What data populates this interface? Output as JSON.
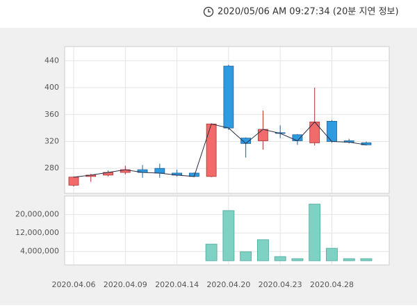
{
  "header": {
    "text": "2020/05/06 AM 09:27:34 (20분 지연 정보)"
  },
  "chart_data": {
    "type": "candlestick",
    "categories": [
      "2020.04.06",
      null,
      null,
      "2020.04.09",
      null,
      null,
      "2020.04.14",
      null,
      null,
      "2020.04.20",
      null,
      null,
      "2020.04.23",
      null,
      null,
      "2020.04.28",
      null,
      null
    ],
    "open": [
      255,
      268,
      270,
      274,
      278,
      280,
      273,
      273,
      268,
      432,
      325,
      321,
      333,
      330,
      318,
      350,
      321,
      318
    ],
    "high": [
      268,
      272,
      277,
      284,
      285,
      287,
      278,
      274,
      347,
      434,
      326,
      366,
      344,
      331,
      400,
      352,
      324,
      320
    ],
    "low": [
      253,
      260,
      268,
      271,
      266,
      266,
      268,
      267,
      267,
      337,
      296,
      308,
      325,
      315,
      314,
      318,
      317,
      314
    ],
    "close": [
      267,
      270,
      274,
      278,
      274,
      273,
      270,
      268,
      346,
      340,
      317,
      338,
      332,
      321,
      349,
      320,
      319,
      315
    ],
    "ylim": [
      243,
      461
    ],
    "yticks": [
      280,
      320,
      360,
      400,
      440
    ],
    "up_color": "#f26b6b",
    "down_color": "#2e9be0",
    "line_color": "#2b2f45",
    "grid": true,
    "volume": {
      "values": [
        0,
        0,
        0,
        0,
        0,
        0,
        0,
        0,
        7200000,
        21700000,
        3900000,
        9100000,
        1800000,
        900000,
        24500000,
        5400000,
        900000,
        900000
      ],
      "color": "#7fd1c4",
      "ylim": [
        -1800000,
        28000000
      ],
      "yticks": [
        {
          "value": 4000000,
          "label": "4,000,000"
        },
        {
          "value": 12000000,
          "label": "12,000,000"
        },
        {
          "value": 20000000,
          "label": "20,000,000"
        }
      ]
    }
  }
}
